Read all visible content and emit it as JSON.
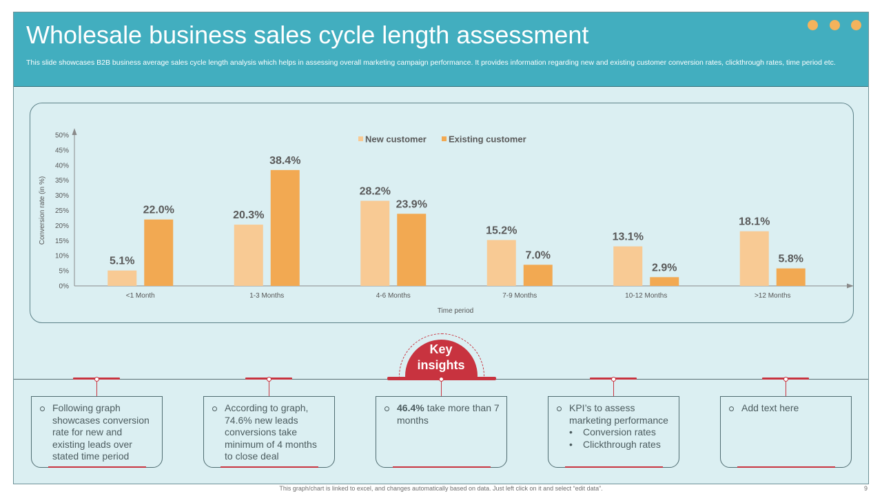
{
  "header": {
    "title": "Wholesale business sales cycle length assessment",
    "subtitle": "This slide showcases B2B business average sales cycle length analysis which helps in assessing overall marketing campaign performance. It provides information regarding new and existing customer conversion rates, clickthrough rates, time period etc.",
    "dots_color": "#f4b35c"
  },
  "colors": {
    "header_bg": "#42aebf",
    "panel_bg": "#dbeff2",
    "new_customer": "#f8ca94",
    "existing_customer": "#f2a952",
    "accent_red": "#c8333f"
  },
  "chart_data": {
    "type": "bar",
    "categories": [
      "<1 Month",
      "1-3 Months",
      "4-6 Months",
      "7-9 Months",
      "10-12 Months",
      ">12 Months"
    ],
    "series": [
      {
        "name": "New customer",
        "values": [
          5.1,
          20.3,
          28.2,
          15.2,
          13.1,
          18.1
        ],
        "labels": [
          "5.1%",
          "20.3%",
          "28.2%",
          "15.2%",
          "13.1%",
          "18.1%"
        ]
      },
      {
        "name": "Existing customer",
        "values": [
          22.0,
          38.4,
          23.9,
          7.0,
          2.9,
          5.8
        ],
        "labels": [
          "22.0%",
          "38.4%",
          "23.9%",
          "7.0%",
          "2.9%",
          "5.8%"
        ]
      }
    ],
    "yticks": [
      "0%",
      "5%",
      "10%",
      "15%",
      "20%",
      "25%",
      "30%",
      "35%",
      "40%",
      "45%",
      "50%"
    ],
    "ylim": [
      0,
      50
    ],
    "xlabel": "Time period",
    "ylabel": "Conversion rate (in %)",
    "legend_position": "top-center",
    "grid": false
  },
  "key_insights": {
    "label": "Key insights",
    "boxes": [
      {
        "text": "Following graph showcases conversion rate for new and existing leads over stated time period"
      },
      {
        "text": "According to graph, 74.6% new leads conversions take minimum of 4 months to close deal"
      },
      {
        "bold": "46.4%",
        "text": " take more than 7 months"
      },
      {
        "text": "KPI’s to assess marketing performance",
        "sub_items": [
          "Conversion rates",
          "Clickthrough rates"
        ]
      },
      {
        "text": "Add text here"
      }
    ]
  },
  "footer": {
    "note": "This graph/chart is linked to excel, and changes automatically based on data. Just left click on it and select “edit data”.",
    "page_number": "9"
  }
}
